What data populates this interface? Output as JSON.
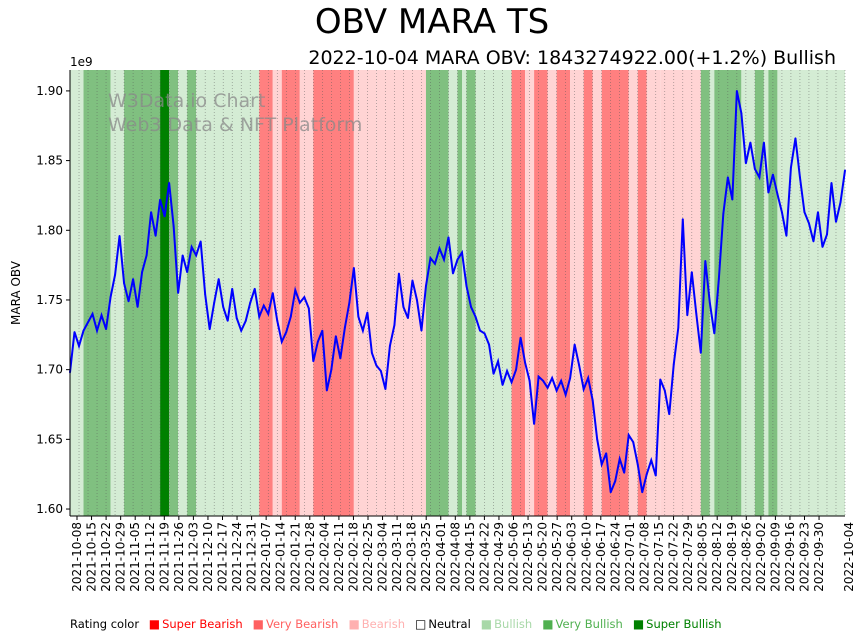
{
  "chart_data": {
    "type": "line",
    "title": "OBV MARA TS",
    "subtitle": "2022-10-04 MARA OBV: 1843274922.00(+1.2%) Bullish",
    "ylabel": "MARA OBV",
    "y_scale_label": "1e9",
    "ylim": [
      1.595,
      1.915
    ],
    "y_ticks": [
      "1.60",
      "1.65",
      "1.70",
      "1.75",
      "1.80",
      "1.85",
      "1.90"
    ],
    "x_ticks": [
      "2021-10-08",
      "2021-10-15",
      "2021-10-22",
      "2021-10-29",
      "2021-11-05",
      "2021-11-12",
      "2021-11-19",
      "2021-11-26",
      "2021-12-03",
      "2021-12-10",
      "2021-12-17",
      "2021-12-24",
      "2021-12-31",
      "2022-01-07",
      "2022-01-14",
      "2022-01-21",
      "2022-01-28",
      "2022-02-04",
      "2022-02-11",
      "2022-02-18",
      "2022-02-25",
      "2022-03-04",
      "2022-03-11",
      "2022-03-18",
      "2022-03-25",
      "2022-04-01",
      "2022-04-08",
      "2022-04-15",
      "2022-04-22",
      "2022-04-29",
      "2022-05-06",
      "2022-05-13",
      "2022-05-20",
      "2022-05-27",
      "2022-06-03",
      "2022-06-10",
      "2022-06-17",
      "2022-06-24",
      "2022-07-01",
      "2022-07-08",
      "2022-07-15",
      "2022-07-22",
      "2022-07-29",
      "2022-08-05",
      "2022-08-12",
      "2022-08-19",
      "2022-08-26",
      "2022-09-02",
      "2022-09-09",
      "2022-09-16",
      "2022-09-23",
      "2022-09-30",
      "2022-10-04"
    ],
    "series": [
      {
        "name": "MARA OBV",
        "color": "#0000ff",
        "points": [
          [
            0,
            1.698
          ],
          [
            1,
            1.727
          ],
          [
            2,
            1.717
          ],
          [
            3,
            1.728
          ],
          [
            4,
            1.734
          ],
          [
            5,
            1.74
          ],
          [
            6,
            1.728
          ],
          [
            7,
            1.739
          ],
          [
            8,
            1.729
          ],
          [
            9,
            1.752
          ],
          [
            10,
            1.768
          ],
          [
            11,
            1.796
          ],
          [
            12,
            1.762
          ],
          [
            13,
            1.749
          ],
          [
            14,
            1.765
          ],
          [
            15,
            1.745
          ],
          [
            16,
            1.77
          ],
          [
            17,
            1.782
          ],
          [
            18,
            1.813
          ],
          [
            19,
            1.796
          ],
          [
            20,
            1.822
          ],
          [
            21,
            1.81
          ],
          [
            22,
            1.834
          ],
          [
            23,
            1.803
          ],
          [
            24,
            1.755
          ],
          [
            25,
            1.782
          ],
          [
            26,
            1.77
          ],
          [
            27,
            1.788
          ],
          [
            28,
            1.782
          ],
          [
            29,
            1.792
          ],
          [
            30,
            1.754
          ],
          [
            31,
            1.729
          ],
          [
            32,
            1.748
          ],
          [
            33,
            1.765
          ],
          [
            34,
            1.745
          ],
          [
            35,
            1.735
          ],
          [
            36,
            1.758
          ],
          [
            37,
            1.737
          ],
          [
            38,
            1.728
          ],
          [
            39,
            1.735
          ],
          [
            40,
            1.748
          ],
          [
            41,
            1.758
          ],
          [
            42,
            1.738
          ],
          [
            43,
            1.746
          ],
          [
            44,
            1.74
          ],
          [
            45,
            1.755
          ],
          [
            46,
            1.735
          ],
          [
            47,
            1.72
          ],
          [
            48,
            1.727
          ],
          [
            49,
            1.738
          ],
          [
            50,
            1.757
          ],
          [
            51,
            1.748
          ],
          [
            52,
            1.752
          ],
          [
            53,
            1.744
          ],
          [
            54,
            1.706
          ],
          [
            55,
            1.72
          ],
          [
            56,
            1.728
          ],
          [
            57,
            1.685
          ],
          [
            58,
            1.7
          ],
          [
            59,
            1.724
          ],
          [
            60,
            1.708
          ],
          [
            61,
            1.73
          ],
          [
            62,
            1.748
          ],
          [
            63,
            1.773
          ],
          [
            64,
            1.738
          ],
          [
            65,
            1.728
          ],
          [
            66,
            1.741
          ],
          [
            67,
            1.712
          ],
          [
            68,
            1.703
          ],
          [
            69,
            1.699
          ],
          [
            70,
            1.686
          ],
          [
            71,
            1.717
          ],
          [
            72,
            1.732
          ],
          [
            73,
            1.769
          ],
          [
            74,
            1.745
          ],
          [
            75,
            1.737
          ],
          [
            76,
            1.764
          ],
          [
            77,
            1.75
          ],
          [
            78,
            1.728
          ],
          [
            79,
            1.76
          ],
          [
            80,
            1.78
          ],
          [
            81,
            1.776
          ],
          [
            82,
            1.787
          ],
          [
            83,
            1.779
          ],
          [
            84,
            1.795
          ],
          [
            85,
            1.769
          ],
          [
            86,
            1.779
          ],
          [
            87,
            1.784
          ],
          [
            88,
            1.76
          ],
          [
            89,
            1.745
          ],
          [
            90,
            1.738
          ],
          [
            91,
            1.728
          ],
          [
            92,
            1.726
          ],
          [
            93,
            1.718
          ],
          [
            94,
            1.697
          ],
          [
            95,
            1.706
          ],
          [
            96,
            1.689
          ],
          [
            97,
            1.699
          ],
          [
            98,
            1.691
          ],
          [
            99,
            1.7
          ],
          [
            100,
            1.723
          ],
          [
            101,
            1.705
          ],
          [
            102,
            1.692
          ],
          [
            103,
            1.661
          ],
          [
            104,
            1.695
          ],
          [
            105,
            1.692
          ],
          [
            106,
            1.687
          ],
          [
            107,
            1.694
          ],
          [
            108,
            1.685
          ],
          [
            109,
            1.692
          ],
          [
            110,
            1.682
          ],
          [
            111,
            1.694
          ],
          [
            112,
            1.718
          ],
          [
            113,
            1.703
          ],
          [
            114,
            1.686
          ],
          [
            115,
            1.694
          ],
          [
            116,
            1.678
          ],
          [
            117,
            1.65
          ],
          [
            118,
            1.632
          ],
          [
            119,
            1.64
          ],
          [
            120,
            1.612
          ],
          [
            121,
            1.62
          ],
          [
            122,
            1.636
          ],
          [
            123,
            1.626
          ],
          [
            124,
            1.653
          ],
          [
            125,
            1.648
          ],
          [
            126,
            1.632
          ],
          [
            127,
            1.612
          ],
          [
            128,
            1.625
          ],
          [
            129,
            1.635
          ],
          [
            130,
            1.624
          ],
          [
            131,
            1.693
          ],
          [
            132,
            1.685
          ],
          [
            133,
            1.668
          ],
          [
            134,
            1.704
          ],
          [
            135,
            1.73
          ],
          [
            136,
            1.808
          ],
          [
            137,
            1.739
          ],
          [
            138,
            1.77
          ],
          [
            139,
            1.74
          ],
          [
            140,
            1.712
          ],
          [
            141,
            1.778
          ],
          [
            142,
            1.748
          ],
          [
            143,
            1.726
          ],
          [
            144,
            1.765
          ],
          [
            145,
            1.812
          ],
          [
            146,
            1.838
          ],
          [
            147,
            1.822
          ],
          [
            148,
            1.9
          ],
          [
            149,
            1.884
          ],
          [
            150,
            1.848
          ],
          [
            151,
            1.863
          ],
          [
            152,
            1.844
          ],
          [
            153,
            1.838
          ],
          [
            154,
            1.863
          ],
          [
            155,
            1.827
          ],
          [
            156,
            1.84
          ],
          [
            157,
            1.826
          ],
          [
            158,
            1.813
          ],
          [
            159,
            1.796
          ],
          [
            160,
            1.845
          ],
          [
            161,
            1.866
          ],
          [
            162,
            1.838
          ],
          [
            163,
            1.813
          ],
          [
            164,
            1.805
          ],
          [
            165,
            1.792
          ],
          [
            166,
            1.813
          ],
          [
            167,
            1.788
          ],
          [
            168,
            1.797
          ],
          [
            169,
            1.834
          ],
          [
            170,
            1.806
          ],
          [
            171,
            1.82
          ],
          [
            172,
            1.843
          ]
        ]
      }
    ],
    "rating_bands": [
      {
        "start": 0,
        "end": 3,
        "rating": "Bullish"
      },
      {
        "start": 3,
        "end": 9,
        "rating": "Very Bullish"
      },
      {
        "start": 9,
        "end": 12,
        "rating": "Bullish"
      },
      {
        "start": 12,
        "end": 20,
        "rating": "Very Bullish"
      },
      {
        "start": 20,
        "end": 22,
        "rating": "Super Bullish"
      },
      {
        "start": 22,
        "end": 24,
        "rating": "Very Bullish"
      },
      {
        "start": 24,
        "end": 26,
        "rating": "Bullish"
      },
      {
        "start": 26,
        "end": 28,
        "rating": "Very Bullish"
      },
      {
        "start": 28,
        "end": 42,
        "rating": "Bullish"
      },
      {
        "start": 42,
        "end": 45,
        "rating": "Very Bearish"
      },
      {
        "start": 45,
        "end": 47,
        "rating": "Bearish"
      },
      {
        "start": 47,
        "end": 51,
        "rating": "Very Bearish"
      },
      {
        "start": 51,
        "end": 54,
        "rating": "Bearish"
      },
      {
        "start": 54,
        "end": 63,
        "rating": "Very Bearish"
      },
      {
        "start": 63,
        "end": 68,
        "rating": "Bearish"
      },
      {
        "start": 68,
        "end": 79,
        "rating": "Bearish"
      },
      {
        "start": 79,
        "end": 84,
        "rating": "Very Bullish"
      },
      {
        "start": 84,
        "end": 86,
        "rating": "Bullish"
      },
      {
        "start": 86,
        "end": 87,
        "rating": "Very Bullish"
      },
      {
        "start": 87,
        "end": 88,
        "rating": "Bullish"
      },
      {
        "start": 88,
        "end": 90,
        "rating": "Very Bullish"
      },
      {
        "start": 90,
        "end": 98,
        "rating": "Bullish"
      },
      {
        "start": 98,
        "end": 101,
        "rating": "Very Bearish"
      },
      {
        "start": 101,
        "end": 103,
        "rating": "Bearish"
      },
      {
        "start": 103,
        "end": 106,
        "rating": "Very Bearish"
      },
      {
        "start": 106,
        "end": 108,
        "rating": "Bearish"
      },
      {
        "start": 108,
        "end": 111,
        "rating": "Very Bearish"
      },
      {
        "start": 111,
        "end": 114,
        "rating": "Bearish"
      },
      {
        "start": 114,
        "end": 116,
        "rating": "Very Bearish"
      },
      {
        "start": 116,
        "end": 118,
        "rating": "Bearish"
      },
      {
        "start": 118,
        "end": 124,
        "rating": "Very Bearish"
      },
      {
        "start": 124,
        "end": 126,
        "rating": "Bearish"
      },
      {
        "start": 126,
        "end": 128,
        "rating": "Very Bearish"
      },
      {
        "start": 128,
        "end": 131,
        "rating": "Bearish"
      },
      {
        "start": 131,
        "end": 140,
        "rating": "Bearish"
      },
      {
        "start": 140,
        "end": 142,
        "rating": "Very Bullish"
      },
      {
        "start": 142,
        "end": 143,
        "rating": "Bullish"
      },
      {
        "start": 143,
        "end": 149,
        "rating": "Very Bullish"
      },
      {
        "start": 149,
        "end": 152,
        "rating": "Bullish"
      },
      {
        "start": 152,
        "end": 154,
        "rating": "Very Bullish"
      },
      {
        "start": 154,
        "end": 155,
        "rating": "Bullish"
      },
      {
        "start": 155,
        "end": 157,
        "rating": "Very Bullish"
      },
      {
        "start": 157,
        "end": 158,
        "rating": "Bullish"
      },
      {
        "start": 158,
        "end": 172,
        "rating": "Bullish"
      }
    ],
    "rating_colors": {
      "Super Bearish": "#ff0000",
      "Very Bearish": "#ff8080",
      "Bearish": "#ffd4d4",
      "Neutral": "#ffffff",
      "Bullish": "#d4ecd4",
      "Very Bullish": "#80c080",
      "Super Bullish": "#008000"
    }
  },
  "watermark": {
    "line1": "W3Data.io Chart",
    "line2": "Web3 Data & NFT Platform"
  },
  "legend": {
    "title": "Rating color",
    "items": [
      {
        "label": "Super Bearish",
        "color": "#ff0000",
        "text_color": "#ff0000"
      },
      {
        "label": "Very Bearish",
        "color": "#ff6060",
        "text_color": "#ff6060"
      },
      {
        "label": "Bearish",
        "color": "#ffb0b0",
        "text_color": "#ffb0b0"
      },
      {
        "label": "Neutral",
        "color": "#ffffff",
        "text_color": "#000000"
      },
      {
        "label": "Bullish",
        "color": "#a8d8a8",
        "text_color": "#a8d8a8"
      },
      {
        "label": "Very Bullish",
        "color": "#50b050",
        "text_color": "#50b050"
      },
      {
        "label": "Super Bullish",
        "color": "#008000",
        "text_color": "#008000"
      }
    ]
  }
}
